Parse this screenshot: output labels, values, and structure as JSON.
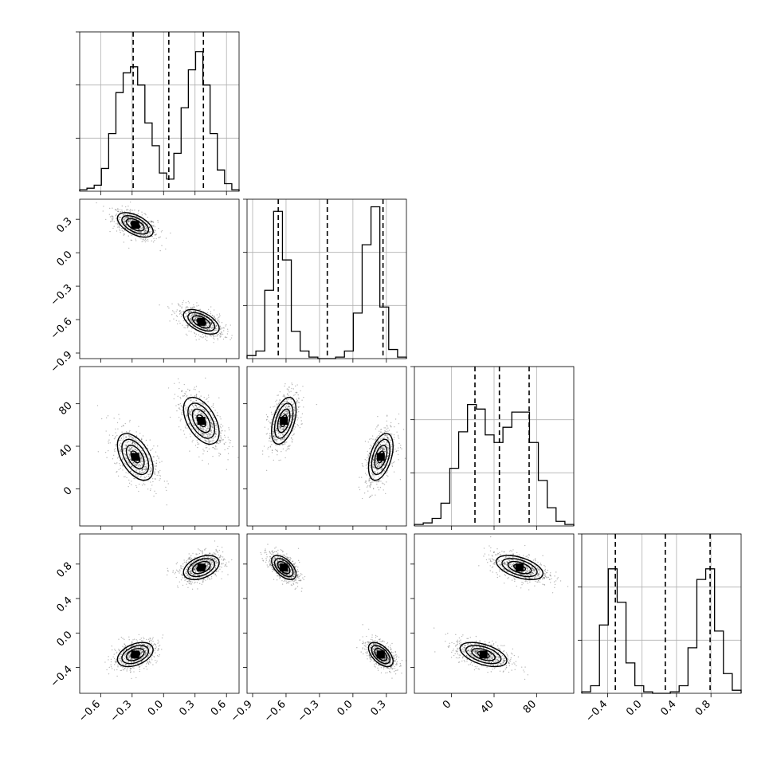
{
  "chart_data": {
    "type": "scatter",
    "description": "corner plot (pairwise 2D density + 1D marginal histograms) for four parameters",
    "parameters": [
      {
        "index": 0,
        "range": [
          -0.8,
          0.72
        ],
        "ticks": [
          -0.6,
          -0.3,
          0.0,
          0.3,
          0.6
        ],
        "tick_labels": [
          "−0.6",
          "−0.3",
          "0.0",
          "0.3",
          "0.6"
        ],
        "quantiles": [
          -0.29,
          0.05,
          0.38
        ],
        "histogram": [
          0.01,
          0.02,
          0.04,
          0.15,
          0.38,
          0.65,
          0.78,
          0.82,
          0.7,
          0.45,
          0.3,
          0.12,
          0.08,
          0.25,
          0.55,
          0.8,
          0.92,
          0.7,
          0.38,
          0.14,
          0.05,
          0.01
        ]
      },
      {
        "index": 1,
        "range": [
          -0.95,
          0.48
        ],
        "ticks": [
          -0.9,
          -0.6,
          -0.3,
          0.0,
          0.3
        ],
        "tick_labels": [
          "−0.9",
          "−0.6",
          "−0.3",
          "0.0",
          "0.3"
        ],
        "quantiles": [
          -0.67,
          -0.23,
          0.27
        ],
        "histogram": [
          0.02,
          0.05,
          0.45,
          0.97,
          0.65,
          0.18,
          0.05,
          0.01,
          0.0,
          0.0,
          0.01,
          0.05,
          0.3,
          0.75,
          1.0,
          0.34,
          0.06,
          0.01
        ]
      },
      {
        "index": 2,
        "range": [
          -35,
          115
        ],
        "ticks": [
          0,
          40,
          80
        ],
        "tick_labels": [
          "0",
          "40",
          "80"
        ],
        "quantiles": [
          22,
          45,
          73
        ],
        "histogram": [
          0.01,
          0.02,
          0.05,
          0.15,
          0.38,
          0.62,
          0.8,
          0.77,
          0.6,
          0.55,
          0.65,
          0.75,
          0.75,
          0.55,
          0.3,
          0.12,
          0.03,
          0.01
        ]
      },
      {
        "index": 3,
        "range": [
          -0.7,
          1.15
        ],
        "ticks": [
          -0.4,
          0.0,
          0.4,
          0.8
        ],
        "tick_labels": [
          "−0.4",
          "0.0",
          "0.4",
          "0.8"
        ],
        "quantiles": [
          -0.31,
          0.27,
          0.79
        ],
        "histogram": [
          0.01,
          0.05,
          0.45,
          0.82,
          0.6,
          0.2,
          0.05,
          0.01,
          0.0,
          0.0,
          0.01,
          0.05,
          0.3,
          0.75,
          0.82,
          0.41,
          0.13,
          0.02
        ]
      }
    ],
    "modes": [
      {
        "p0": -0.27,
        "p1": 0.25,
        "p2": 30,
        "p3": -0.25
      },
      {
        "p0": 0.36,
        "p1": -0.62,
        "p2": 64,
        "p3": 0.76
      }
    ],
    "mode_sigma": {
      "p0": 0.085,
      "p1": 0.055,
      "p2": 11,
      "p3": 0.07
    },
    "correlations": {
      "1-0": -0.55,
      "2-0": -0.5,
      "2-1": 0.45,
      "3-0": 0.4,
      "3-1": -0.55,
      "3-2": -0.5
    },
    "contour_levels_sigma": [
      0.5,
      1.0,
      1.5,
      2.0
    ],
    "grid": true,
    "legend": "none"
  }
}
